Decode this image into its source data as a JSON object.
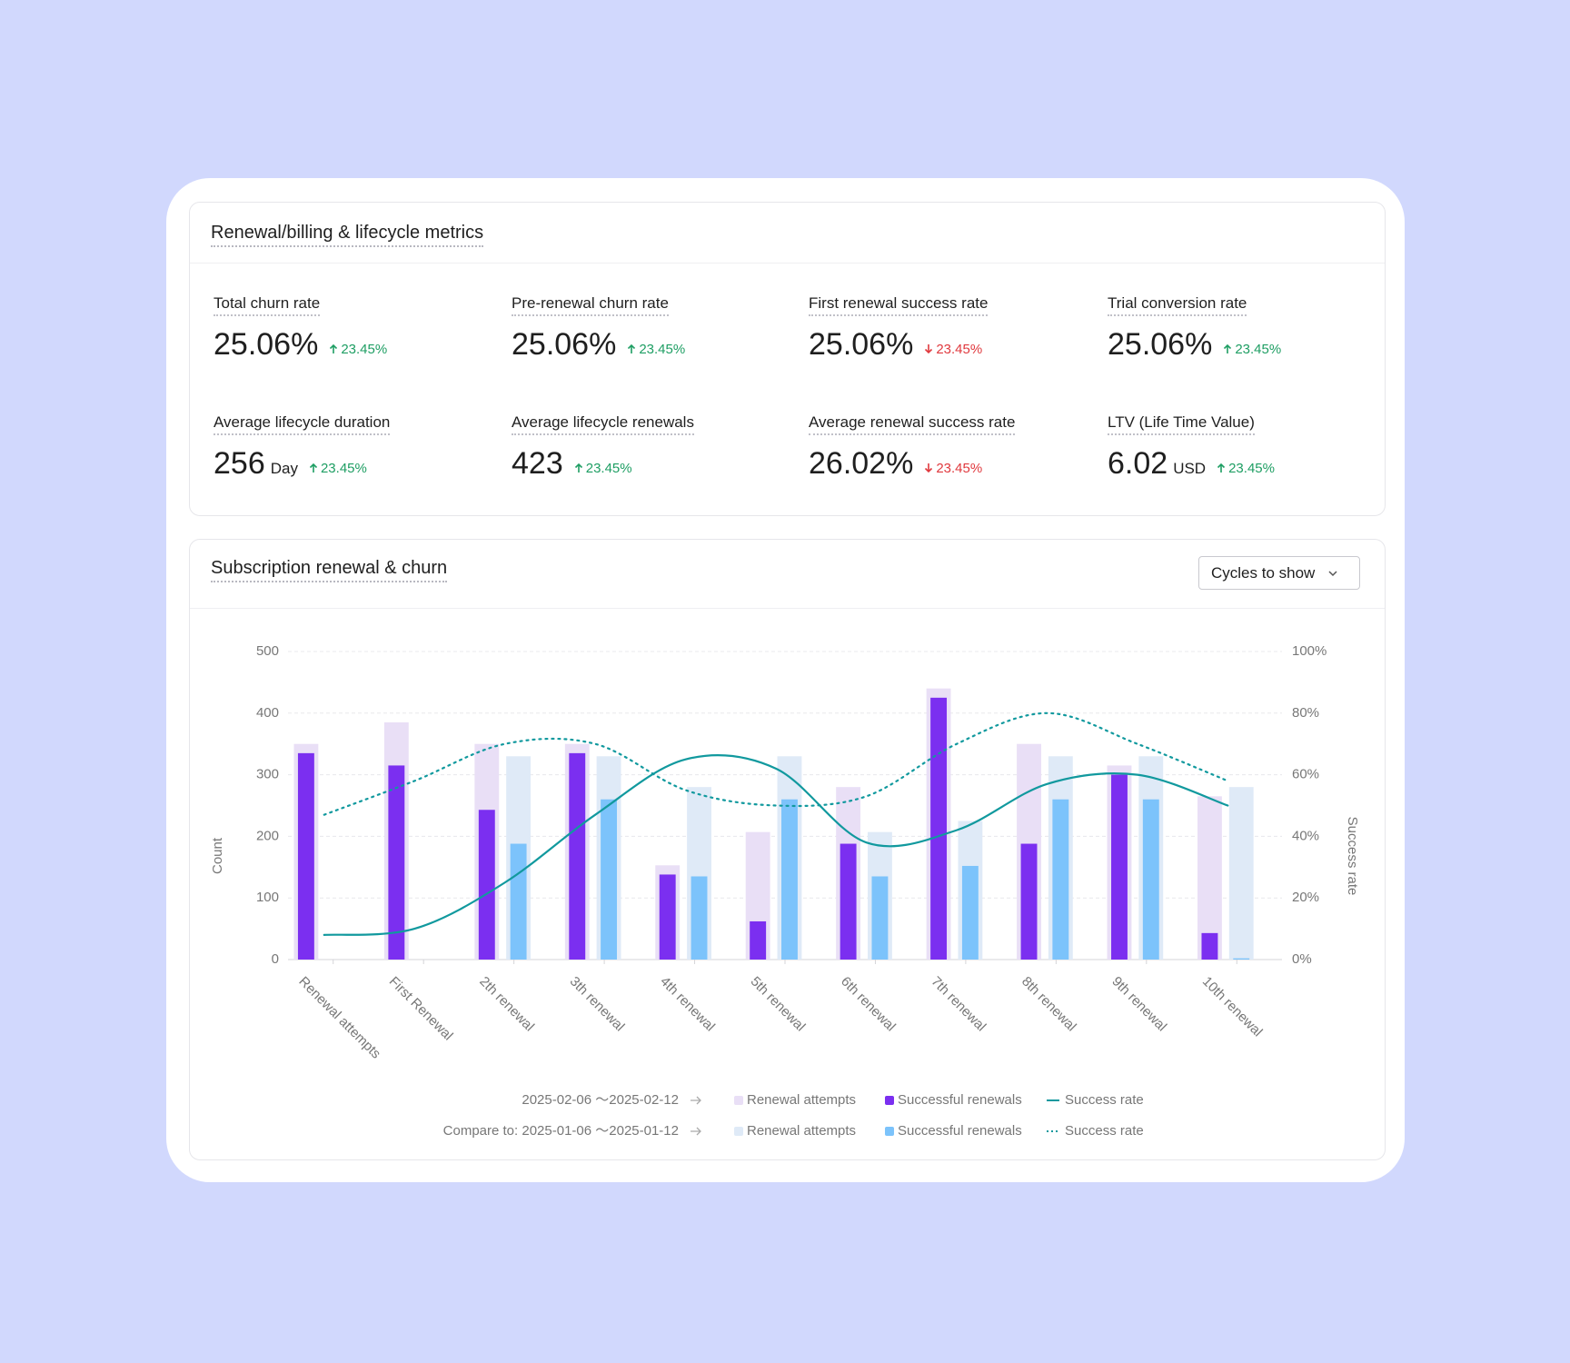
{
  "metrics": {
    "title": "Renewal/billing & lifecycle metrics",
    "items": [
      {
        "label": "Total churn rate",
        "value": "25.06%",
        "change": "23.45%",
        "trend": "up"
      },
      {
        "label": "Pre-renewal churn rate",
        "value": "25.06%",
        "change": "23.45%",
        "trend": "up"
      },
      {
        "label": "First renewal success rate",
        "value": "25.06%",
        "change": "23.45%",
        "trend": "down"
      },
      {
        "label": "Trial conversion rate",
        "value": "25.06%",
        "change": "23.45%",
        "trend": "up"
      },
      {
        "label": "Average lifecycle duration",
        "value": "256",
        "unit": "Day",
        "change": "23.45%",
        "trend": "up"
      },
      {
        "label": "Average lifecycle renewals",
        "value": "423",
        "change": "23.45%",
        "trend": "up"
      },
      {
        "label": "Average renewal success rate",
        "value": "26.02%",
        "change": "23.45%",
        "trend": "down"
      },
      {
        "label": "LTV (Life Time Value)",
        "value": "6.02",
        "unit": "USD",
        "change": "23.45%",
        "trend": "up"
      }
    ]
  },
  "chart_section": {
    "title": "Subscription renewal & churn",
    "button": "Cycles to show"
  },
  "chart_data": {
    "type": "bar",
    "categories": [
      "Renewal attempts",
      "First Renewal",
      "2th renewal",
      "3th renewal",
      "4th renewal",
      "5th renewal",
      "6th renewal",
      "7th renewal",
      "8th renewal",
      "9th renewal",
      "10th renewal"
    ],
    "ylabel": "Count",
    "y2label": "Success rate",
    "ylim": [
      0,
      500
    ],
    "yticks": [
      0,
      100,
      200,
      300,
      400,
      500
    ],
    "y2lim": [
      0,
      100
    ],
    "y2ticks": [
      {
        "value": 0,
        "label": "0%"
      },
      {
        "value": 20,
        "label": "20%"
      },
      {
        "value": 40,
        "label": "40%"
      },
      {
        "value": 60,
        "label": "60%"
      },
      {
        "value": 80,
        "label": "80%"
      },
      {
        "value": 100,
        "label": "100%"
      }
    ],
    "grid": true,
    "periods": [
      "2025-02-06 ～2025-02-12",
      "Compare to: 2025-01-06 ～2025-01-12"
    ],
    "series": [
      {
        "name": "Renewal attempts",
        "type": "bar",
        "color": "#e9dff6",
        "values": [
          350,
          385,
          350,
          350,
          153,
          207,
          280,
          440,
          350,
          315,
          265
        ]
      },
      {
        "name": "Successful renewals",
        "type": "bar",
        "color": "#7b2ff0",
        "values": [
          335,
          315,
          243,
          335,
          138,
          62,
          188,
          425,
          188,
          300,
          43
        ]
      },
      {
        "name": "Success rate",
        "type": "line",
        "axis": "y2",
        "color": "#11999e",
        "line_style": "solid",
        "values": [
          8,
          10,
          25,
          47,
          65,
          62,
          38,
          42,
          57,
          60,
          50
        ]
      },
      {
        "name": "Renewal attempts",
        "type": "bar",
        "color": "#dfeaf7",
        "values": [
          null,
          null,
          330,
          330,
          280,
          330,
          207,
          225,
          330,
          330,
          280
        ]
      },
      {
        "name": "Successful renewals",
        "type": "bar",
        "color": "#7cc3fb",
        "values": [
          null,
          null,
          188,
          260,
          135,
          260,
          135,
          152,
          260,
          260,
          2
        ]
      },
      {
        "name": "Success rate",
        "type": "line",
        "axis": "y2",
        "color": "#11999e",
        "line_style": "dotted",
        "values": [
          47,
          58,
          70,
          70,
          55,
          50,
          53,
          70,
          80,
          70,
          58
        ]
      }
    ]
  }
}
